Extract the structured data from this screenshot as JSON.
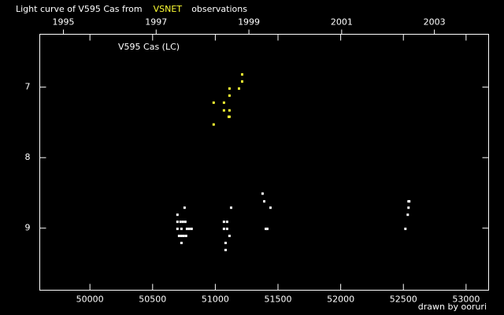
{
  "chart_data": {
    "type": "scatter",
    "title_parts": [
      {
        "text": "Light curve of V595 Cas from",
        "color": "#ffffff"
      },
      {
        "text": "VSNET",
        "color": "#ffff33"
      },
      {
        "text": "observations",
        "color": "#ffffff"
      }
    ],
    "plot_label": "V595 Cas (LC)",
    "credit": "drawn by ooruri",
    "credit_color": "#33dddd",
    "xlim": [
      49600,
      53180
    ],
    "xticks": [
      50000,
      50500,
      51000,
      51500,
      52000,
      52500,
      53000
    ],
    "x2lim": [
      1994.49,
      2004.17
    ],
    "x2ticks": [
      1995,
      1997,
      1999,
      2001,
      2003
    ],
    "ylim": [
      9.88,
      6.25
    ],
    "yticks": [
      7,
      8,
      9
    ],
    "series": [
      {
        "color": "#ffffff",
        "x": [
          50698,
          50755,
          50698,
          50723,
          50742,
          50761,
          50698,
          50730,
          50774,
          50792,
          50811,
          50711,
          50730,
          50748,
          50767,
          50730,
          51069,
          51094,
          51069,
          51094,
          51113,
          51082,
          51082,
          51126,
          51377,
          51390,
          51440,
          51403,
          51415,
          52541,
          52547,
          52541,
          52535,
          52516
        ],
        "values": [
          8.81,
          8.71,
          8.91,
          8.91,
          8.91,
          8.91,
          9.01,
          9.01,
          9.01,
          9.01,
          9.01,
          9.11,
          9.11,
          9.11,
          9.11,
          9.21,
          8.91,
          8.91,
          9.01,
          9.01,
          9.11,
          9.21,
          9.31,
          8.71,
          8.51,
          8.62,
          8.71,
          9.01,
          9.01,
          8.62,
          8.62,
          8.71,
          8.81,
          9.01
        ]
      },
      {
        "color": "#ffff33",
        "x": [
          51214,
          51214,
          51189,
          51113,
          51113,
          50987,
          51069,
          51069,
          51113,
          51113,
          51107,
          50987
        ],
        "values": [
          6.82,
          6.92,
          7.02,
          7.02,
          7.12,
          7.22,
          7.22,
          7.33,
          7.33,
          7.42,
          7.42,
          7.53
        ]
      }
    ]
  }
}
